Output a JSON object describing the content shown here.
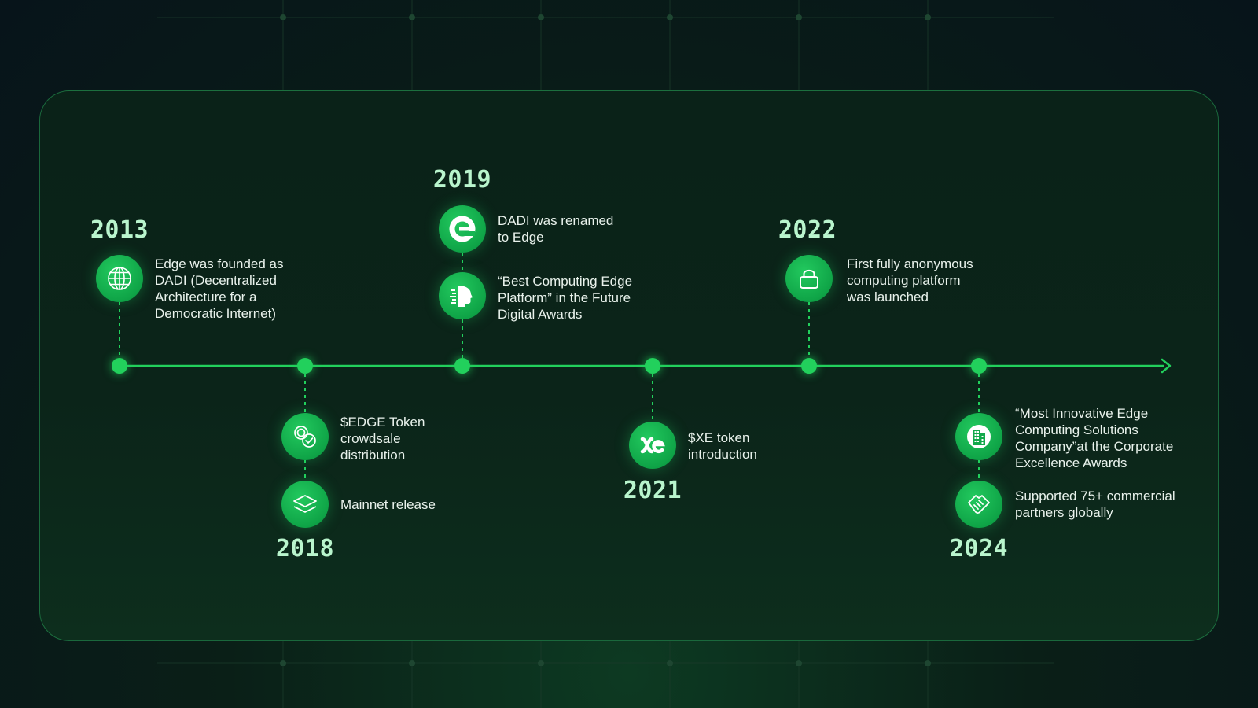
{
  "colors": {
    "accent": "#22d05c",
    "icon_fill": "#0fa447",
    "year_text": "#b9f5cd",
    "body_text": "#e9f2ec",
    "background": "#07141a"
  },
  "timeline": {
    "milestones": [
      {
        "year": "2013",
        "icon": "globe-icon",
        "text": "Edge was founded as\nDADI (Decentralized\nArchitecture for a\nDemocratic Internet)"
      },
      {
        "year": "2018",
        "icon": "coins-check-icon",
        "text": "$EDGE Token\ncrowdsale\ndistribution"
      },
      {
        "year": "2018",
        "icon": "layers-icon",
        "text": "Mainnet release"
      },
      {
        "year": "2019",
        "icon": "edge-logo-icon",
        "text": "DADI was renamed\nto Edge"
      },
      {
        "year": "2019",
        "icon": "ai-head-icon",
        "text": "“Best Computing Edge\nPlatform” in the Future\nDigital Awards"
      },
      {
        "year": "2021",
        "icon": "xe-logo-icon",
        "text": "$XE token\nintroduction"
      },
      {
        "year": "2022",
        "icon": "lock-icon",
        "text": "First fully anonymous\ncomputing platform\nwas launched"
      },
      {
        "year": "2024",
        "icon": "building-icon",
        "text": "“Most Innovative Edge\nComputing Solutions\nCompany”at the Corporate\nExcellence Awards"
      },
      {
        "year": "2024",
        "icon": "handshake-icon",
        "text": "Supported 75+ commercial\npartners globally"
      }
    ]
  }
}
